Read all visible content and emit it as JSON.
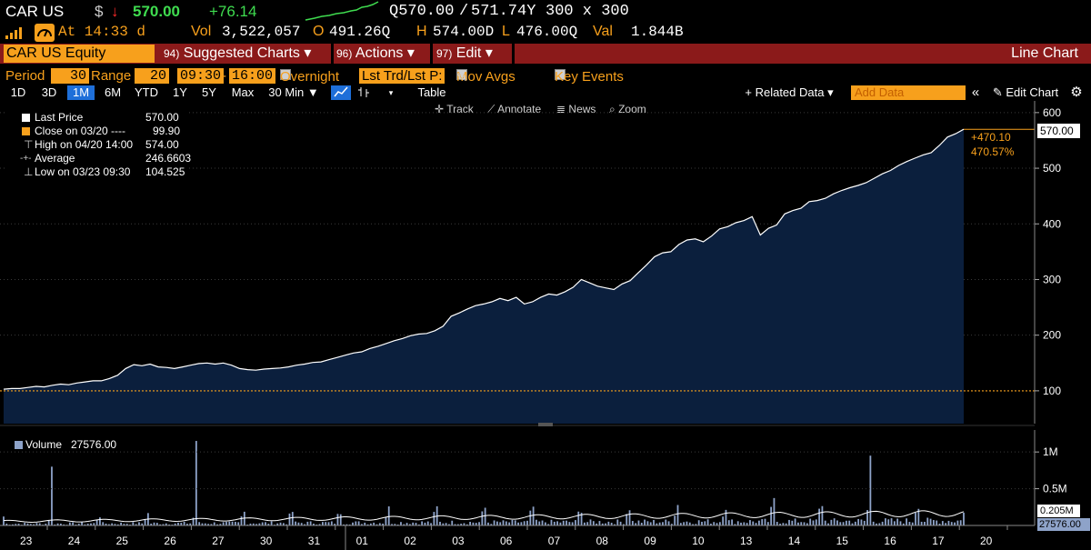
{
  "header": {
    "ticker": "CAR US",
    "currency": "$",
    "arrow": "↓",
    "last_price": "570.00",
    "change": "+76.14",
    "quote_bid": "Q570.00",
    "quote_ask": "571.74Y",
    "size": "300 x 300",
    "at_time": "At 14:33 d",
    "vol_label": "Vol",
    "vol_value": "3,522,057",
    "open_label": "O",
    "open_value": "491.26Q",
    "high_label": "H",
    "high_value": "574.00D",
    "low_label": "L",
    "low_value": "476.00Q",
    "val_label": "Val",
    "val_value": "1.844B"
  },
  "menubar": {
    "security": "CAR US Equity",
    "items": [
      {
        "num": "94)",
        "label": "Suggested Charts ▾"
      },
      {
        "num": "96)",
        "label": "Actions ▾"
      },
      {
        "num": "97)",
        "label": "Edit ▾"
      }
    ],
    "chart_type": "Line Chart"
  },
  "period_bar": {
    "period_label": "Period",
    "period_value": "30",
    "range_label": "Range",
    "range_value": "20",
    "start_time": "09:30",
    "dash": "-",
    "end_time": "16:00",
    "overnight": "Overnight",
    "lst_trd": "Lst Trd/Lst P:",
    "mov_avgs": "Mov Avgs",
    "key_events": "Key Events"
  },
  "range_bar": {
    "ranges": [
      "1D",
      "3D",
      "1M",
      "6M",
      "YTD",
      "1Y",
      "5Y",
      "Max"
    ],
    "active": "1M",
    "interval": "30 Min ▼",
    "table": "Table",
    "related": "+ Related Data ▾",
    "add_data_placeholder": "Add Data",
    "collapse": "«",
    "edit_chart": "✎ Edit Chart",
    "gear": "gear-icon"
  },
  "chart_tools": [
    "Track",
    "Annotate",
    "News",
    "Zoom"
  ],
  "legend": [
    {
      "label": "Last Price",
      "value": "570.00"
    },
    {
      "label": "Close on 03/20 ----",
      "value": "99.90"
    },
    {
      "label": "High on 04/20 14:00",
      "value": "574.00"
    },
    {
      "label": "Average",
      "value": "246.6603"
    },
    {
      "label": "Low on 03/23 09:30",
      "value": "104.525"
    }
  ],
  "price_tags": {
    "last": "570.00",
    "abs_change": "+470.10",
    "pct_change": "470.57%"
  },
  "volume": {
    "label": "Volume",
    "value": "27576.00",
    "ma_tag": "0.205M",
    "vol_tag": "27576.00"
  },
  "colors": {
    "amber": "#f7a01c",
    "menu_red": "#8b1a1a",
    "area_fill": "#0b1f3d",
    "volume_bar": "#8ea3c9"
  },
  "chart_data": {
    "type": "area",
    "price": {
      "name": "Last Price",
      "yticks": [
        100,
        200,
        300,
        400,
        500,
        600
      ],
      "ylim": [
        41,
        621
      ],
      "ref_line": 99.9,
      "values": [
        103,
        104,
        104,
        106,
        108,
        107,
        110,
        112,
        111,
        114,
        116,
        118,
        118,
        122,
        128,
        140,
        147,
        145,
        148,
        143,
        142,
        140,
        143,
        146,
        149,
        150,
        148,
        150,
        146,
        140,
        138,
        137,
        139,
        140,
        141,
        143,
        146,
        148,
        151,
        152,
        156,
        160,
        164,
        168,
        170,
        176,
        180,
        185,
        190,
        194,
        199,
        202,
        203,
        208,
        216,
        234,
        240,
        247,
        253,
        256,
        260,
        266,
        262,
        268,
        256,
        260,
        268,
        274,
        272,
        278,
        286,
        300,
        294,
        288,
        285,
        282,
        292,
        298,
        312,
        326,
        341,
        348,
        350,
        363,
        371,
        373,
        368,
        378,
        391,
        395,
        402,
        406,
        413,
        380,
        392,
        398,
        418,
        424,
        428,
        440,
        442,
        446,
        454,
        460,
        465,
        469,
        474,
        482,
        490,
        496,
        505,
        512,
        518,
        524,
        528,
        541,
        556,
        562,
        570
      ]
    },
    "volume": {
      "name": "Volume",
      "yticks": [
        "0.5M",
        "1M"
      ],
      "ylim": [
        0,
        1200000
      ]
    },
    "x_labels": [
      "23",
      "24",
      "25",
      "26",
      "27",
      "30",
      "31",
      "01",
      "02",
      "03",
      "06",
      "07",
      "08",
      "09",
      "10",
      "13",
      "14",
      "15",
      "16",
      "17",
      "20"
    ]
  }
}
